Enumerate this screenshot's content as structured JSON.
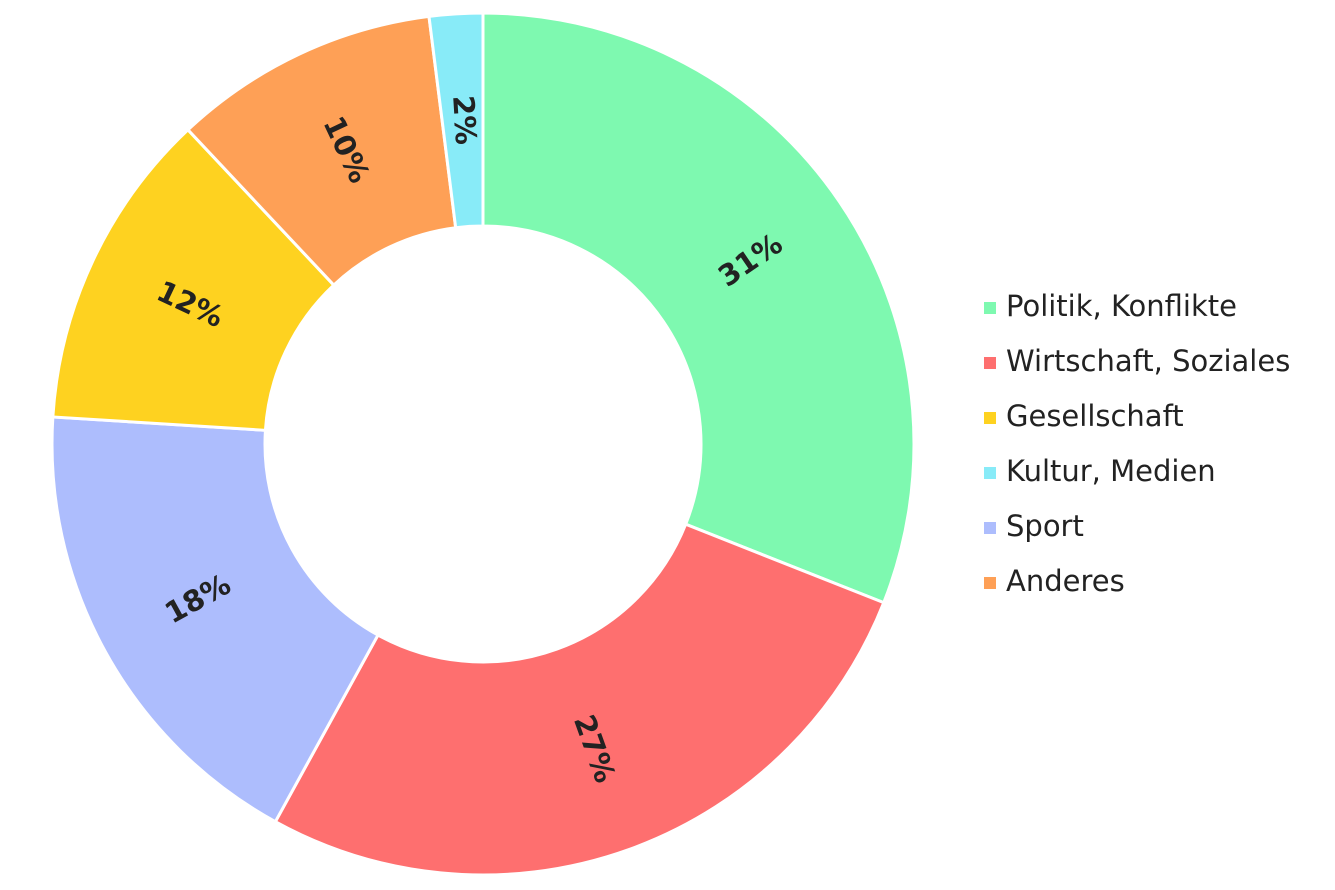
{
  "chart_data": {
    "type": "donut",
    "slices": [
      {
        "value": 31,
        "value_label": "31%",
        "color": "#7ef9b0"
      },
      {
        "value": 27,
        "value_label": "27%",
        "color": "#fe6f6f"
      },
      {
        "value": 18,
        "value_label": "18%",
        "color": "#adbdfd"
      },
      {
        "value": 12,
        "value_label": "12%",
        "color": "#fed220"
      },
      {
        "value": 10,
        "value_label": "10%",
        "color": "#fea056"
      },
      {
        "value": 2,
        "value_label": "2%",
        "color": "#88ebf8"
      }
    ],
    "legend": [
      {
        "name": "Politik, Konflikte",
        "color": "#7ef9b0"
      },
      {
        "name": "Wirtschaft, Soziales",
        "color": "#fe6f6f"
      },
      {
        "name": "Gesellschaft",
        "color": "#fed220"
      },
      {
        "name": "Kultur, Medien",
        "color": "#88ebf8"
      },
      {
        "name": "Sport",
        "color": "#adbdfd"
      },
      {
        "name": "Anderes",
        "color": "#fea056"
      }
    ],
    "legend_position": "right"
  }
}
